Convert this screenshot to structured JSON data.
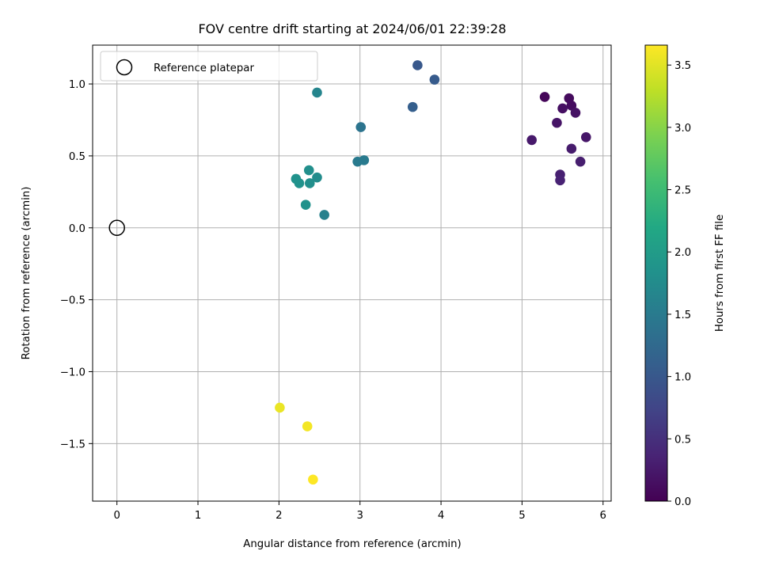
{
  "chart_data": {
    "type": "scatter",
    "title": "FOV centre drift starting at 2024/06/01 22:39:28",
    "xlabel": "Angular distance from reference (arcmin)",
    "ylabel": "Rotation from reference (arcmin)",
    "colorbar_label": "Hours from first FF file",
    "colormap": "viridis",
    "xlim": [
      -0.3,
      6.1
    ],
    "ylim": [
      -1.9,
      1.27
    ],
    "clim": [
      0,
      3.66
    ],
    "x_ticks": [
      0,
      1,
      2,
      3,
      4,
      5,
      6
    ],
    "x_tick_labels": [
      "0",
      "1",
      "2",
      "3",
      "4",
      "5",
      "6"
    ],
    "y_ticks": [
      1.0,
      0.5,
      0.0,
      -0.5,
      -1.0,
      -1.5
    ],
    "y_tick_labels": [
      "1.0",
      "0.5",
      "0.0",
      "−0.5",
      "−1.0",
      "−1.5"
    ],
    "colorbar_ticks": [
      0,
      0.5,
      1.0,
      1.5,
      2.0,
      2.5,
      3.0,
      3.5
    ],
    "colorbar_tick_labels": [
      "0.0",
      "0.5",
      "1.0",
      "1.5",
      "2.0",
      "2.5",
      "3.0",
      "3.5"
    ],
    "grid": true,
    "legend_position": "top-left",
    "reference": {
      "label": "Reference platepar",
      "x": 0.0,
      "y": 0.0
    },
    "points": [
      {
        "x": 5.28,
        "y": 0.91,
        "hours": 0.05
      },
      {
        "x": 5.58,
        "y": 0.9,
        "hours": 0.1
      },
      {
        "x": 5.61,
        "y": 0.85,
        "hours": 0.12
      },
      {
        "x": 5.5,
        "y": 0.83,
        "hours": 0.15
      },
      {
        "x": 5.66,
        "y": 0.8,
        "hours": 0.18
      },
      {
        "x": 5.43,
        "y": 0.73,
        "hours": 0.2
      },
      {
        "x": 5.79,
        "y": 0.63,
        "hours": 0.22
      },
      {
        "x": 5.12,
        "y": 0.61,
        "hours": 0.25
      },
      {
        "x": 5.61,
        "y": 0.55,
        "hours": 0.28
      },
      {
        "x": 5.72,
        "y": 0.46,
        "hours": 0.3
      },
      {
        "x": 5.47,
        "y": 0.37,
        "hours": 0.32
      },
      {
        "x": 5.47,
        "y": 0.33,
        "hours": 0.35
      },
      {
        "x": 3.71,
        "y": 1.13,
        "hours": 1.0
      },
      {
        "x": 3.92,
        "y": 1.03,
        "hours": 1.05
      },
      {
        "x": 3.65,
        "y": 0.84,
        "hours": 1.1
      },
      {
        "x": 3.01,
        "y": 0.7,
        "hours": 1.4
      },
      {
        "x": 2.97,
        "y": 0.46,
        "hours": 1.5
      },
      {
        "x": 3.05,
        "y": 0.47,
        "hours": 1.5
      },
      {
        "x": 2.47,
        "y": 0.94,
        "hours": 1.65
      },
      {
        "x": 2.56,
        "y": 0.09,
        "hours": 1.6
      },
      {
        "x": 2.37,
        "y": 0.4,
        "hours": 1.8
      },
      {
        "x": 2.47,
        "y": 0.35,
        "hours": 1.75
      },
      {
        "x": 2.21,
        "y": 0.34,
        "hours": 1.85
      },
      {
        "x": 2.25,
        "y": 0.31,
        "hours": 1.85
      },
      {
        "x": 2.38,
        "y": 0.31,
        "hours": 1.8
      },
      {
        "x": 2.33,
        "y": 0.16,
        "hours": 1.85
      },
      {
        "x": 2.01,
        "y": -1.25,
        "hours": 3.55
      },
      {
        "x": 2.35,
        "y": -1.38,
        "hours": 3.6
      },
      {
        "x": 2.42,
        "y": -1.75,
        "hours": 3.66
      }
    ]
  }
}
